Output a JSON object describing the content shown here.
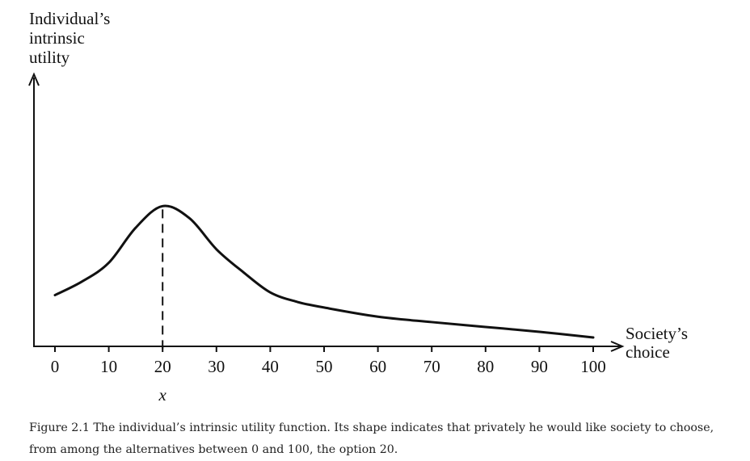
{
  "chart_data": {
    "type": "line",
    "ylabel_lines": [
      "Individual’s",
      "intrinsic",
      "utility"
    ],
    "xlabel_lines": [
      "Society’s",
      "choice"
    ],
    "xticks": [
      0,
      10,
      20,
      30,
      40,
      50,
      60,
      70,
      80,
      90,
      100
    ],
    "xlim": [
      0,
      100
    ],
    "ylim": [
      0,
      100
    ],
    "marker": {
      "x": 20,
      "label": "x",
      "style": "dashed"
    },
    "series": [
      {
        "name": "intrinsic utility",
        "x": [
          0,
          5,
          10,
          15,
          20,
          25,
          30,
          35,
          40,
          45,
          50,
          60,
          70,
          80,
          90,
          100
        ],
        "y": [
          19,
          24,
          31,
          44,
          52,
          47.5,
          36,
          27.5,
          20,
          16.5,
          14.4,
          11,
          9,
          7.2,
          5.4,
          3.3
        ]
      }
    ]
  },
  "caption": "Figure 2.1 The individual’s intrinsic utility function. Its shape indicates that privately he would like society to choose, from among the alternatives between 0 and 100, the option 20."
}
